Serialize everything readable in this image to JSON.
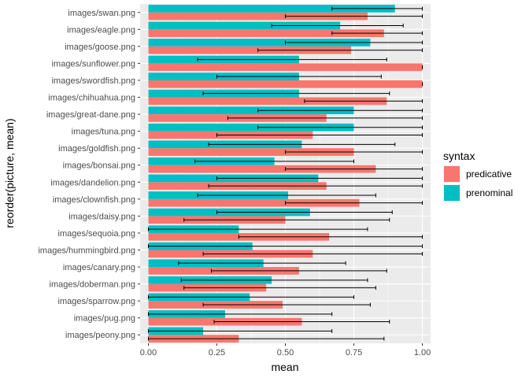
{
  "chart_data": {
    "type": "bar",
    "orientation": "horizontal",
    "xlabel": "mean",
    "ylabel": "reorder(picture, mean)",
    "xlim": [
      -0.03,
      1.03
    ],
    "xticks": [
      0.0,
      0.25,
      0.5,
      0.75,
      1.0
    ],
    "xtick_labels": [
      "0.00",
      "0.25",
      "0.50",
      "0.75",
      "1.00"
    ],
    "grid": true,
    "legend_position": "right",
    "legend_title": "syntax",
    "categories": [
      "images/swan.png",
      "images/eagle.png",
      "images/goose.png",
      "images/sunflower.png",
      "images/swordfish.png",
      "images/chihuahua.png",
      "images/great-dane.png",
      "images/tuna.png",
      "images/goldfish.png",
      "images/bonsai.png",
      "images/dandelion.png",
      "images/clownfish.png",
      "images/daisy.png",
      "images/sequoia.png",
      "images/hummingbird.png",
      "images/canary.png",
      "images/doberman.png",
      "images/sparrow.png",
      "images/pug.png",
      "images/peony.png"
    ],
    "series": [
      {
        "name": "predicative",
        "color": "#F8766D",
        "values": [
          0.8,
          0.86,
          0.74,
          1.0,
          1.0,
          0.87,
          0.65,
          0.6,
          0.75,
          0.83,
          0.65,
          0.77,
          0.5,
          0.66,
          0.6,
          0.55,
          0.43,
          0.49,
          0.56,
          0.33
        ],
        "ci_low": [
          0.5,
          0.67,
          0.4,
          1.0,
          1.0,
          0.57,
          0.29,
          0.25,
          0.5,
          0.5,
          0.22,
          0.5,
          0.13,
          0.33,
          0.2,
          0.23,
          0.13,
          0.2,
          0.24,
          0.0
        ],
        "ci_high": [
          1.0,
          1.0,
          1.0,
          1.0,
          1.0,
          1.0,
          1.0,
          1.0,
          1.0,
          1.0,
          1.0,
          1.0,
          0.88,
          1.0,
          1.0,
          0.87,
          0.83,
          0.81,
          0.88,
          0.86
        ]
      },
      {
        "name": "prenominal",
        "color": "#00BFC4",
        "values": [
          0.9,
          0.7,
          0.81,
          0.55,
          0.55,
          0.55,
          0.75,
          0.75,
          0.56,
          0.46,
          0.62,
          0.51,
          0.59,
          0.33,
          0.38,
          0.42,
          0.45,
          0.37,
          0.28,
          0.2
        ],
        "ci_low": [
          0.67,
          0.45,
          0.5,
          0.18,
          0.25,
          0.2,
          0.4,
          0.4,
          0.22,
          0.17,
          0.25,
          0.18,
          0.25,
          0.0,
          0.0,
          0.11,
          0.12,
          0.0,
          0.0,
          0.0
        ],
        "ci_high": [
          1.0,
          0.93,
          1.0,
          0.87,
          0.85,
          0.88,
          1.0,
          1.0,
          0.9,
          0.75,
          1.0,
          0.83,
          0.89,
          0.8,
          1.0,
          0.72,
          0.8,
          0.75,
          0.67,
          0.67
        ]
      }
    ]
  }
}
